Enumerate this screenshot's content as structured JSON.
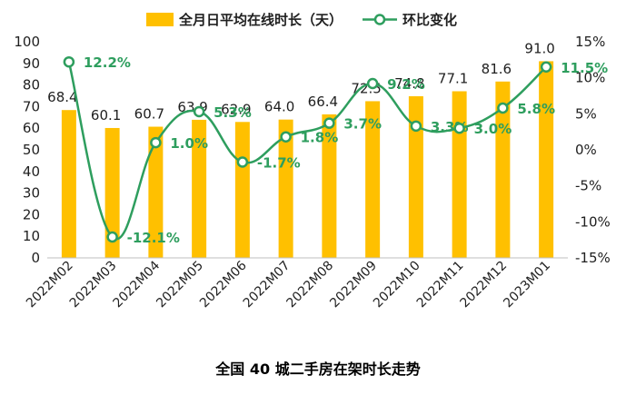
{
  "chart_data": {
    "type": "bar",
    "title": "全国 40 城二手房在架时长走势",
    "categories": [
      "2022M02",
      "2022M03",
      "2022M04",
      "2022M05",
      "2022M06",
      "2022M07",
      "2022M08",
      "2022M09",
      "2022M10",
      "2022M11",
      "2022M12",
      "2023M01"
    ],
    "series": [
      {
        "name": "全月日平均在线时长（天）",
        "type": "bar",
        "axis": "left",
        "color": "#FFC000",
        "values": [
          68.4,
          60.1,
          60.7,
          63.9,
          62.9,
          64.0,
          66.4,
          72.5,
          74.8,
          77.1,
          81.6,
          91.0
        ],
        "labels": [
          "68.4",
          "60.1",
          "60.7",
          "63.9",
          "62.9",
          "64.0",
          "66.4",
          "72.5",
          "74.8",
          "77.1",
          "81.6",
          "91.0"
        ]
      },
      {
        "name": "环比变化",
        "type": "line",
        "axis": "right",
        "color": "#2E9E5E",
        "values": [
          12.2,
          -12.1,
          1.0,
          5.3,
          -1.7,
          1.8,
          3.7,
          9.2,
          3.3,
          3.0,
          5.8,
          11.5
        ],
        "labels": [
          "12.2%",
          "-12.1%",
          "1.0%",
          "5.3%",
          "-1.7%",
          "1.8%",
          "3.7%",
          "9.2%",
          "3.3%",
          "3.0%",
          "5.8%",
          "11.5%"
        ]
      }
    ],
    "y_left": {
      "min": 0,
      "max": 100,
      "step": 10,
      "ticks": [
        "0",
        "10",
        "20",
        "30",
        "40",
        "50",
        "60",
        "70",
        "80",
        "90",
        "100"
      ]
    },
    "y_right": {
      "min": -15,
      "max": 15,
      "step": 5,
      "ticks": [
        "-15%",
        "-10%",
        "-5%",
        "0%",
        "5%",
        "10%",
        "15%"
      ]
    },
    "grid": false,
    "legend_position": "top"
  }
}
